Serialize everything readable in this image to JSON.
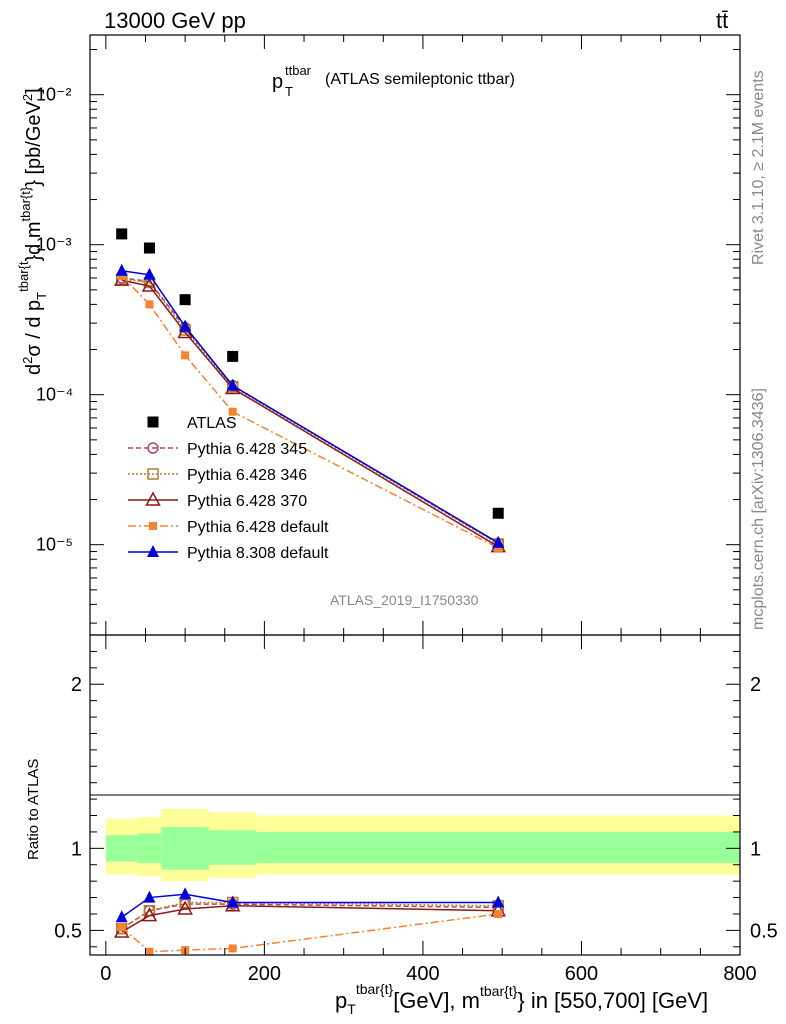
{
  "header": {
    "left": "13000 GeV pp",
    "right": "tt̄"
  },
  "side_labels": {
    "rivet": "Rivet 3.1.10, ≥ 2.1M events",
    "mcplots": "mcplots.cern.ch [arXiv:1306.3436]"
  },
  "plot_title": {
    "main": "p",
    "sub": "T",
    "sup": "ttbar",
    "rest": "(ATLAS semileptonic ttbar)"
  },
  "watermark": "ATLAS_2019_I1750330",
  "colors": {
    "atlas": "#000000",
    "py345": "#b04a5a",
    "py346": "#b07d30",
    "py370": "#8b1a1a",
    "py6def": "#f58231",
    "py8def": "#0000dd",
    "band_inner": "#99ff99",
    "band_outer": "#ffff99"
  },
  "chart_data": [
    {
      "type": "line",
      "yscale": "log",
      "ylabel": "d²σ / d p_T^{tbar{t}}d m^{tbar{t}} [pb/GeV²]",
      "xlim": [
        -20,
        800
      ],
      "ylim": [
        2.5e-06,
        0.025
      ],
      "y_ticks": [
        "10⁻⁵",
        "10⁻⁴",
        "10⁻³",
        "10⁻²"
      ],
      "x": [
        20,
        55,
        100,
        160,
        495
      ],
      "series": [
        {
          "name": "ATLAS",
          "values": [
            0.00118,
            0.00095,
            0.00043,
            0.00018,
            1.62e-05
          ]
        },
        {
          "name": "Pythia 6.428 345",
          "values": [
            0.0006,
            0.00057,
            0.00028,
            0.000115,
            1.02e-05
          ]
        },
        {
          "name": "Pythia 6.428 346",
          "values": [
            0.00059,
            0.00056,
            0.00027,
            0.000113,
            1.01e-05
          ]
        },
        {
          "name": "Pythia 6.428 370",
          "values": [
            0.00058,
            0.00053,
            0.00026,
            0.00011,
            9.7e-06
          ]
        },
        {
          "name": "Pythia 6.428 default",
          "values": [
            0.00062,
            0.0004,
            0.000183,
            7.7e-05,
            9.5e-06
          ]
        },
        {
          "name": "Pythia 8.308 default",
          "values": [
            0.00067,
            0.00063,
            0.000285,
            0.000115,
            1.03e-05
          ]
        }
      ]
    },
    {
      "type": "line",
      "ylabel": "Ratio to ATLAS",
      "xlabel": "p_T^{tbar{t}}[GeV], m^{tbar{t}} in [550,700] [GeV]",
      "xlim": [
        -20,
        800
      ],
      "ylim": [
        0.35,
        2.3
      ],
      "x_ticks": [
        "0",
        "200",
        "400",
        "600",
        "800"
      ],
      "y_ticks": [
        "0.5",
        "1",
        "2"
      ],
      "x": [
        20,
        55,
        100,
        160,
        495
      ],
      "bins": [
        [
          0,
          40
        ],
        [
          40,
          70
        ],
        [
          70,
          130
        ],
        [
          130,
          190
        ],
        [
          190,
          800
        ]
      ],
      "band_inner": [
        [
          0.92,
          1.08
        ],
        [
          0.91,
          1.09
        ],
        [
          0.87,
          1.13
        ],
        [
          0.9,
          1.11
        ],
        [
          0.91,
          1.1
        ]
      ],
      "band_outer": [
        [
          0.84,
          1.18
        ],
        [
          0.83,
          1.19
        ],
        [
          0.8,
          1.24
        ],
        [
          0.82,
          1.22
        ],
        [
          0.84,
          1.2
        ]
      ],
      "series": [
        {
          "name": "Pythia 6.428 345",
          "values": [
            0.51,
            0.62,
            0.66,
            0.66,
            0.64
          ]
        },
        {
          "name": "Pythia 6.428 346",
          "values": [
            0.51,
            0.62,
            0.67,
            0.67,
            0.65
          ]
        },
        {
          "name": "Pythia 6.428 370",
          "values": [
            0.49,
            0.59,
            0.63,
            0.65,
            0.62
          ]
        },
        {
          "name": "Pythia 6.428 default",
          "values": [
            0.52,
            0.37,
            0.38,
            0.39,
            0.6
          ]
        },
        {
          "name": "Pythia 8.308 default",
          "values": [
            0.58,
            0.7,
            0.72,
            0.67,
            0.67
          ]
        }
      ]
    }
  ],
  "legend": [
    {
      "label": "ATLAS"
    },
    {
      "label": "Pythia 6.428 345"
    },
    {
      "label": "Pythia 6.428 346"
    },
    {
      "label": "Pythia 6.428 370"
    },
    {
      "label": "Pythia 6.428 default"
    },
    {
      "label": "Pythia 8.308 default"
    }
  ]
}
